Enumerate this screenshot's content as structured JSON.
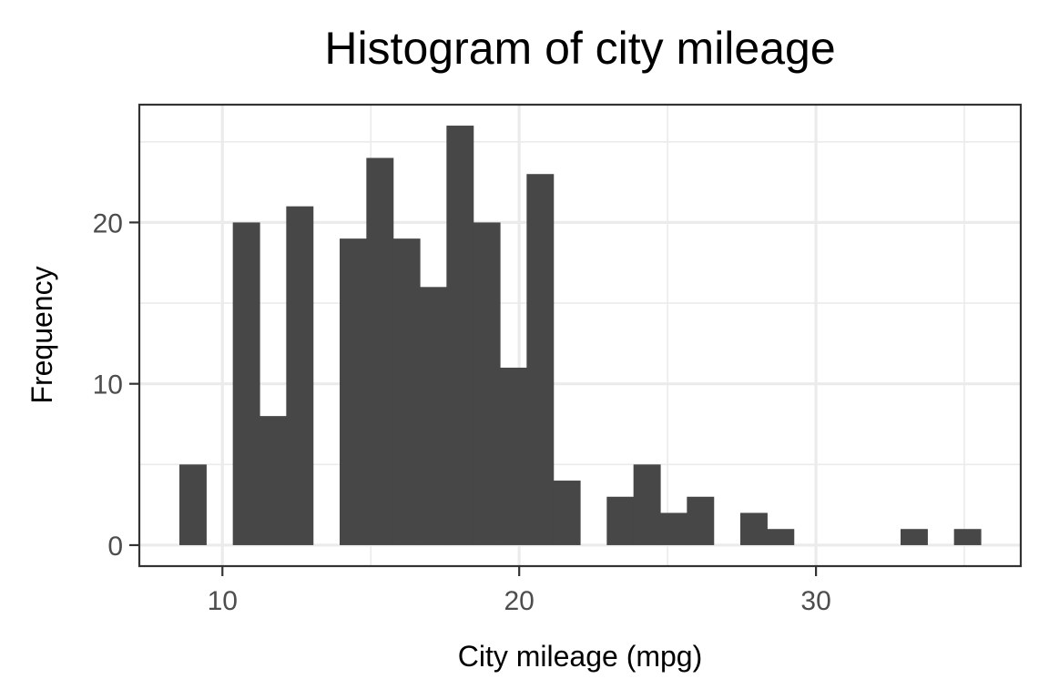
{
  "chart_data": {
    "type": "bar",
    "title": "Histogram of city mileage",
    "xlabel": "City mileage (mpg)",
    "ylabel": "Frequency",
    "bin_width": 0.9,
    "bins": [
      {
        "start": 8.55,
        "end": 9.45,
        "count": 5
      },
      {
        "start": 10.35,
        "end": 11.25,
        "count": 20
      },
      {
        "start": 11.25,
        "end": 12.15,
        "count": 8
      },
      {
        "start": 12.15,
        "end": 13.05,
        "count": 21
      },
      {
        "start": 13.95,
        "end": 14.85,
        "count": 19
      },
      {
        "start": 14.85,
        "end": 15.75,
        "count": 24
      },
      {
        "start": 15.75,
        "end": 16.65,
        "count": 19
      },
      {
        "start": 16.65,
        "end": 17.55,
        "count": 16
      },
      {
        "start": 17.55,
        "end": 18.45,
        "count": 26
      },
      {
        "start": 18.45,
        "end": 19.35,
        "count": 20
      },
      {
        "start": 19.35,
        "end": 20.25,
        "count": 11
      },
      {
        "start": 20.25,
        "end": 21.15,
        "count": 23
      },
      {
        "start": 21.15,
        "end": 22.05,
        "count": 4
      },
      {
        "start": 22.95,
        "end": 23.85,
        "count": 3
      },
      {
        "start": 23.85,
        "end": 24.75,
        "count": 5
      },
      {
        "start": 24.75,
        "end": 25.65,
        "count": 2
      },
      {
        "start": 25.65,
        "end": 26.55,
        "count": 3
      },
      {
        "start": 27.45,
        "end": 28.35,
        "count": 2
      },
      {
        "start": 28.35,
        "end": 29.25,
        "count": 1
      },
      {
        "start": 32.85,
        "end": 33.75,
        "count": 1
      },
      {
        "start": 34.65,
        "end": 35.55,
        "count": 1
      }
    ],
    "xlim": [
      7.2,
      36.9
    ],
    "ylim": [
      -1.3,
      27.3
    ],
    "x_ticks": [
      10,
      20,
      30
    ],
    "x_tick_labels": [
      "10",
      "20",
      "30"
    ],
    "y_ticks": [
      0,
      10,
      20
    ],
    "y_tick_labels": [
      "0",
      "10",
      "20"
    ],
    "x_minor": [
      15,
      25,
      35
    ],
    "y_minor": [
      5,
      15,
      25
    ],
    "grid": true,
    "legend": "none",
    "bar_color": "#474747",
    "panel_background": "#ffffff",
    "grid_color": "#ebebeb",
    "border_color": "#333333"
  }
}
